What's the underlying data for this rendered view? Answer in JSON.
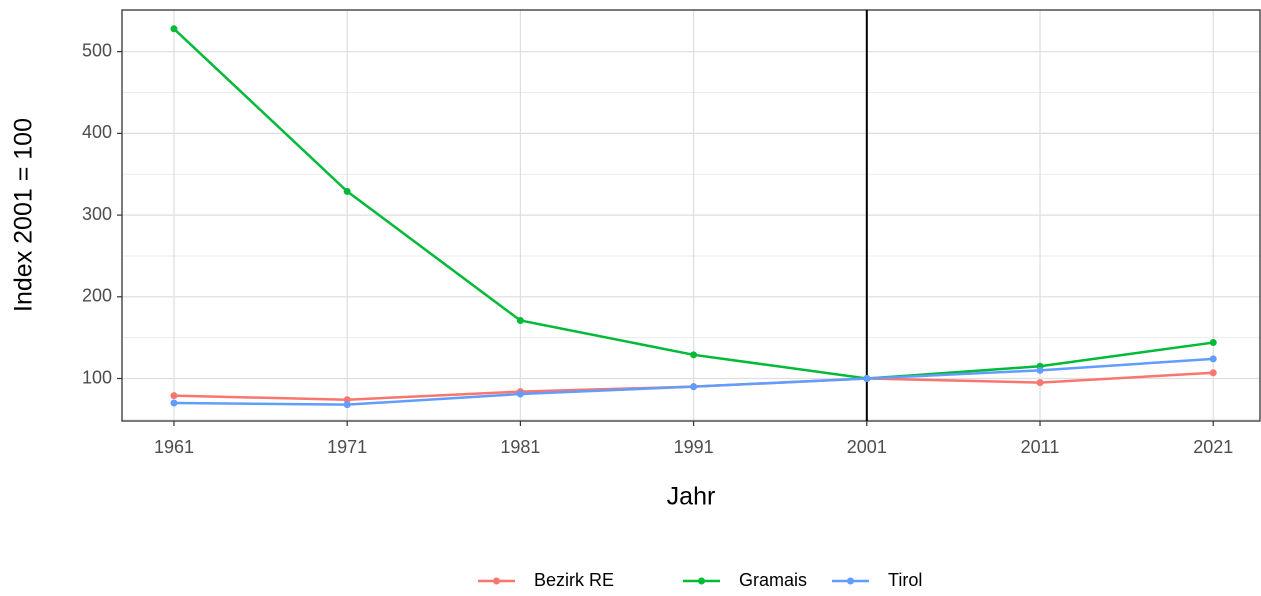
{
  "chart_data": {
    "type": "line",
    "x_label": "Jahr",
    "y_label": "Index 2001 = 100",
    "x": [
      1961,
      1971,
      1981,
      1991,
      2001,
      2011,
      2021
    ],
    "series": [
      {
        "name": "Bezirk RE",
        "color": "#F8766D",
        "values": [
          79,
          74,
          84,
          90,
          100,
          95,
          107
        ]
      },
      {
        "name": "Gramais",
        "color": "#00BA38",
        "values": [
          528,
          329,
          171,
          129,
          100,
          115,
          144
        ]
      },
      {
        "name": "Tirol",
        "color": "#619CFF",
        "values": [
          70,
          68,
          81,
          90,
          100,
          110,
          124
        ]
      }
    ],
    "xlim": [
      1958,
      2023.7
    ],
    "xticks": [
      1961,
      1971,
      1981,
      1991,
      2001,
      2011,
      2021
    ],
    "ylim": [
      48,
      551
    ],
    "yticks": [
      100,
      200,
      300,
      400,
      500
    ],
    "y_minor_ticks": [
      50,
      150,
      250,
      350,
      450
    ],
    "vline": 2001,
    "grid": true,
    "legend": "bottom"
  }
}
